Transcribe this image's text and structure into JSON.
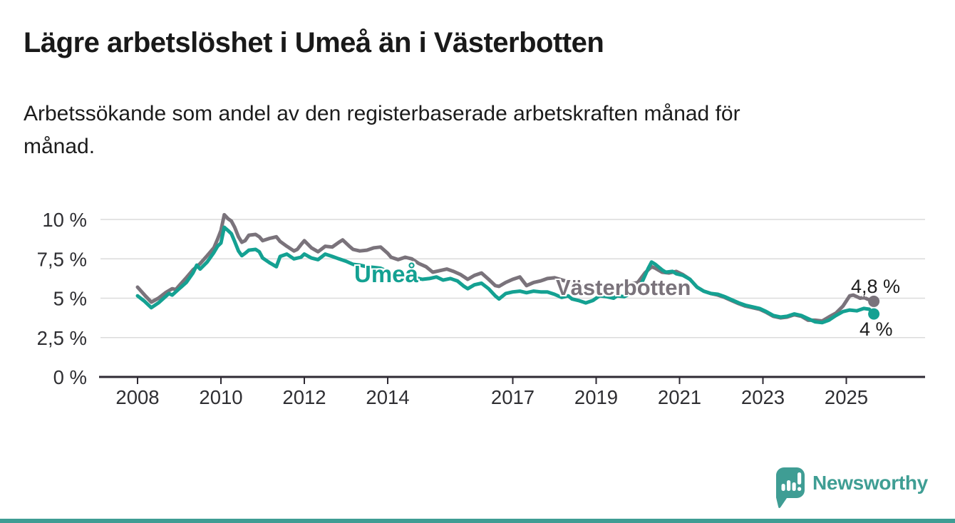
{
  "header": {
    "title": "Lägre arbetslöshet i Umeå än i Västerbotten",
    "subtitle_lines": [
      "Arbetssökande som andel av den registerbaserade arbetskraften månad för",
      "månad."
    ]
  },
  "colors": {
    "umea": "#14a192",
    "vasterbotten": "#7a737b",
    "grid": "#dbdbdb",
    "axis": "#2e2a33",
    "tick_text": "#2f2f33",
    "annotation_text": "#1d1d1d",
    "brand_teal": "#3f9e94",
    "background": "#ffffff"
  },
  "chart_data": {
    "type": "line",
    "unit": "%",
    "title": "Lägre arbetslöshet i Umeå än i Västerbotten",
    "subtitle": "Arbetssökande som andel av den registerbaserade arbetskraften månad för månad.",
    "xlabel": "",
    "ylabel": "",
    "grid": true,
    "legend_position": "inline-labels",
    "xlim": [
      2007.9,
      2026.0
    ],
    "ylim": [
      0,
      10.5
    ],
    "y_ticks": [
      {
        "value": 0,
        "label": "0 %"
      },
      {
        "value": 2.5,
        "label": "2,5 %"
      },
      {
        "value": 5,
        "label": "5 %"
      },
      {
        "value": 7.5,
        "label": "7,5 %"
      },
      {
        "value": 10,
        "label": "10 %"
      }
    ],
    "x_ticks": [
      {
        "year": 2008,
        "label": "2008"
      },
      {
        "year": 2010,
        "label": "2010"
      },
      {
        "year": 2012,
        "label": "2012"
      },
      {
        "year": 2014,
        "label": "2014"
      },
      {
        "year": 2017,
        "label": "2017"
      },
      {
        "year": 2019,
        "label": "2019"
      },
      {
        "year": 2021,
        "label": "2021"
      },
      {
        "year": 2023,
        "label": "2023"
      },
      {
        "year": 2025,
        "label": "2025"
      }
    ],
    "series": [
      {
        "name": "Västerbotten",
        "color": "#7a737b",
        "end_label": "4,8 %",
        "end_value": 4.8,
        "points": [
          [
            2008.0,
            5.7
          ],
          [
            2008.17,
            5.2
          ],
          [
            2008.33,
            4.75
          ],
          [
            2008.5,
            5.0
          ],
          [
            2008.67,
            5.35
          ],
          [
            2008.83,
            5.6
          ],
          [
            2008.92,
            5.55
          ],
          [
            2009.0,
            5.8
          ],
          [
            2009.17,
            6.3
          ],
          [
            2009.33,
            6.8
          ],
          [
            2009.42,
            7.0
          ],
          [
            2009.5,
            7.2
          ],
          [
            2009.67,
            7.7
          ],
          [
            2009.83,
            8.2
          ],
          [
            2009.92,
            8.75
          ],
          [
            2010.0,
            9.3
          ],
          [
            2010.08,
            10.3
          ],
          [
            2010.17,
            10.05
          ],
          [
            2010.25,
            9.9
          ],
          [
            2010.33,
            9.5
          ],
          [
            2010.42,
            8.9
          ],
          [
            2010.5,
            8.55
          ],
          [
            2010.58,
            8.65
          ],
          [
            2010.67,
            9.0
          ],
          [
            2010.83,
            9.05
          ],
          [
            2010.92,
            8.9
          ],
          [
            2011.0,
            8.65
          ],
          [
            2011.17,
            8.8
          ],
          [
            2011.33,
            8.9
          ],
          [
            2011.42,
            8.6
          ],
          [
            2011.58,
            8.3
          ],
          [
            2011.75,
            8.0
          ],
          [
            2011.83,
            8.1
          ],
          [
            2011.92,
            8.4
          ],
          [
            2012.0,
            8.65
          ],
          [
            2012.17,
            8.2
          ],
          [
            2012.33,
            7.95
          ],
          [
            2012.5,
            8.3
          ],
          [
            2012.67,
            8.25
          ],
          [
            2012.83,
            8.55
          ],
          [
            2012.92,
            8.7
          ],
          [
            2013.08,
            8.3
          ],
          [
            2013.17,
            8.1
          ],
          [
            2013.33,
            8.0
          ],
          [
            2013.5,
            8.05
          ],
          [
            2013.67,
            8.2
          ],
          [
            2013.83,
            8.25
          ],
          [
            2014.0,
            7.85
          ],
          [
            2014.08,
            7.6
          ],
          [
            2014.25,
            7.45
          ],
          [
            2014.42,
            7.6
          ],
          [
            2014.58,
            7.5
          ],
          [
            2014.75,
            7.2
          ],
          [
            2014.92,
            7.0
          ],
          [
            2015.08,
            6.65
          ],
          [
            2015.25,
            6.75
          ],
          [
            2015.42,
            6.85
          ],
          [
            2015.58,
            6.7
          ],
          [
            2015.75,
            6.5
          ],
          [
            2015.92,
            6.2
          ],
          [
            2016.08,
            6.45
          ],
          [
            2016.25,
            6.6
          ],
          [
            2016.42,
            6.2
          ],
          [
            2016.58,
            5.8
          ],
          [
            2016.67,
            5.75
          ],
          [
            2016.83,
            6.0
          ],
          [
            2017.0,
            6.2
          ],
          [
            2017.17,
            6.35
          ],
          [
            2017.33,
            5.8
          ],
          [
            2017.5,
            6.0
          ],
          [
            2017.67,
            6.1
          ],
          [
            2017.83,
            6.25
          ],
          [
            2018.0,
            6.3
          ],
          [
            2018.25,
            6.1
          ],
          [
            2018.5,
            5.9
          ],
          [
            2018.67,
            5.75
          ],
          [
            2018.83,
            5.85
          ],
          [
            2019.0,
            5.9
          ],
          [
            2019.25,
            5.8
          ],
          [
            2019.5,
            5.75
          ],
          [
            2019.75,
            5.85
          ],
          [
            2020.0,
            6.0
          ],
          [
            2020.17,
            6.6
          ],
          [
            2020.33,
            7.0
          ],
          [
            2020.42,
            6.9
          ],
          [
            2020.58,
            6.65
          ],
          [
            2020.75,
            6.6
          ],
          [
            2020.92,
            6.7
          ],
          [
            2021.08,
            6.5
          ],
          [
            2021.25,
            6.2
          ],
          [
            2021.42,
            5.7
          ],
          [
            2021.58,
            5.45
          ],
          [
            2021.75,
            5.3
          ],
          [
            2021.92,
            5.2
          ],
          [
            2022.08,
            5.05
          ],
          [
            2022.25,
            4.85
          ],
          [
            2022.42,
            4.65
          ],
          [
            2022.58,
            4.5
          ],
          [
            2022.75,
            4.4
          ],
          [
            2022.92,
            4.3
          ],
          [
            2023.08,
            4.1
          ],
          [
            2023.25,
            3.85
          ],
          [
            2023.42,
            3.75
          ],
          [
            2023.58,
            3.8
          ],
          [
            2023.75,
            3.95
          ],
          [
            2023.92,
            3.85
          ],
          [
            2024.08,
            3.6
          ],
          [
            2024.25,
            3.6
          ],
          [
            2024.42,
            3.55
          ],
          [
            2024.58,
            3.8
          ],
          [
            2024.75,
            4.05
          ],
          [
            2024.92,
            4.5
          ],
          [
            2025.08,
            5.15
          ],
          [
            2025.17,
            5.2
          ],
          [
            2025.33,
            5.0
          ],
          [
            2025.42,
            5.05
          ],
          [
            2025.5,
            4.95
          ],
          [
            2025.66,
            4.8
          ]
        ]
      },
      {
        "name": "Umeå",
        "color": "#14a192",
        "end_label": "4 %",
        "end_value": 4.0,
        "points": [
          [
            2008.0,
            5.15
          ],
          [
            2008.17,
            4.8
          ],
          [
            2008.33,
            4.4
          ],
          [
            2008.5,
            4.7
          ],
          [
            2008.67,
            5.1
          ],
          [
            2008.75,
            5.3
          ],
          [
            2008.83,
            5.2
          ],
          [
            2009.0,
            5.6
          ],
          [
            2009.17,
            6.0
          ],
          [
            2009.33,
            6.6
          ],
          [
            2009.42,
            7.1
          ],
          [
            2009.5,
            6.85
          ],
          [
            2009.67,
            7.3
          ],
          [
            2009.83,
            7.9
          ],
          [
            2009.92,
            8.3
          ],
          [
            2010.0,
            8.5
          ],
          [
            2010.08,
            9.5
          ],
          [
            2010.17,
            9.3
          ],
          [
            2010.25,
            9.1
          ],
          [
            2010.33,
            8.6
          ],
          [
            2010.42,
            8.0
          ],
          [
            2010.5,
            7.7
          ],
          [
            2010.58,
            7.85
          ],
          [
            2010.67,
            8.05
          ],
          [
            2010.83,
            8.1
          ],
          [
            2010.92,
            7.95
          ],
          [
            2011.0,
            7.55
          ],
          [
            2011.17,
            7.25
          ],
          [
            2011.33,
            7.0
          ],
          [
            2011.42,
            7.65
          ],
          [
            2011.58,
            7.8
          ],
          [
            2011.75,
            7.5
          ],
          [
            2011.92,
            7.6
          ],
          [
            2012.0,
            7.8
          ],
          [
            2012.17,
            7.55
          ],
          [
            2012.33,
            7.45
          ],
          [
            2012.5,
            7.8
          ],
          [
            2012.67,
            7.65
          ],
          [
            2012.83,
            7.5
          ],
          [
            2013.0,
            7.35
          ],
          [
            2013.17,
            7.15
          ],
          [
            2013.33,
            7.1
          ],
          [
            2013.5,
            7.0
          ],
          [
            2013.67,
            6.95
          ],
          [
            2013.83,
            6.9
          ],
          [
            2014.0,
            6.7
          ],
          [
            2014.17,
            6.5
          ],
          [
            2014.33,
            6.4
          ],
          [
            2014.5,
            6.35
          ],
          [
            2014.67,
            6.3
          ],
          [
            2014.83,
            6.2
          ],
          [
            2015.0,
            6.25
          ],
          [
            2015.17,
            6.35
          ],
          [
            2015.33,
            6.15
          ],
          [
            2015.5,
            6.25
          ],
          [
            2015.67,
            6.1
          ],
          [
            2015.83,
            5.75
          ],
          [
            2015.92,
            5.6
          ],
          [
            2016.08,
            5.85
          ],
          [
            2016.25,
            5.95
          ],
          [
            2016.42,
            5.6
          ],
          [
            2016.58,
            5.15
          ],
          [
            2016.67,
            4.95
          ],
          [
            2016.83,
            5.3
          ],
          [
            2017.0,
            5.4
          ],
          [
            2017.17,
            5.45
          ],
          [
            2017.33,
            5.35
          ],
          [
            2017.5,
            5.45
          ],
          [
            2017.67,
            5.4
          ],
          [
            2017.83,
            5.4
          ],
          [
            2018.0,
            5.25
          ],
          [
            2018.17,
            5.05
          ],
          [
            2018.33,
            5.15
          ],
          [
            2018.42,
            4.95
          ],
          [
            2018.58,
            4.85
          ],
          [
            2018.75,
            4.7
          ],
          [
            2018.92,
            4.85
          ],
          [
            2019.08,
            5.15
          ],
          [
            2019.25,
            5.1
          ],
          [
            2019.42,
            5.0
          ],
          [
            2019.5,
            5.15
          ],
          [
            2019.67,
            5.1
          ],
          [
            2019.83,
            5.3
          ],
          [
            2020.0,
            5.45
          ],
          [
            2020.08,
            5.9
          ],
          [
            2020.25,
            6.9
          ],
          [
            2020.33,
            7.3
          ],
          [
            2020.42,
            7.15
          ],
          [
            2020.58,
            6.8
          ],
          [
            2020.67,
            6.65
          ],
          [
            2020.83,
            6.7
          ],
          [
            2020.92,
            6.55
          ],
          [
            2021.08,
            6.45
          ],
          [
            2021.25,
            6.2
          ],
          [
            2021.42,
            5.7
          ],
          [
            2021.58,
            5.45
          ],
          [
            2021.75,
            5.3
          ],
          [
            2021.92,
            5.25
          ],
          [
            2022.08,
            5.1
          ],
          [
            2022.25,
            4.9
          ],
          [
            2022.42,
            4.7
          ],
          [
            2022.58,
            4.55
          ],
          [
            2022.75,
            4.45
          ],
          [
            2022.92,
            4.35
          ],
          [
            2023.08,
            4.15
          ],
          [
            2023.25,
            3.9
          ],
          [
            2023.42,
            3.8
          ],
          [
            2023.58,
            3.85
          ],
          [
            2023.75,
            4.0
          ],
          [
            2023.92,
            3.9
          ],
          [
            2024.08,
            3.7
          ],
          [
            2024.25,
            3.5
          ],
          [
            2024.42,
            3.45
          ],
          [
            2024.58,
            3.6
          ],
          [
            2024.75,
            3.9
          ],
          [
            2024.92,
            4.15
          ],
          [
            2025.08,
            4.25
          ],
          [
            2025.25,
            4.2
          ],
          [
            2025.42,
            4.35
          ],
          [
            2025.55,
            4.3
          ],
          [
            2025.66,
            4.0
          ]
        ]
      }
    ]
  },
  "footer": {
    "brand_name": "Newsworthy"
  }
}
